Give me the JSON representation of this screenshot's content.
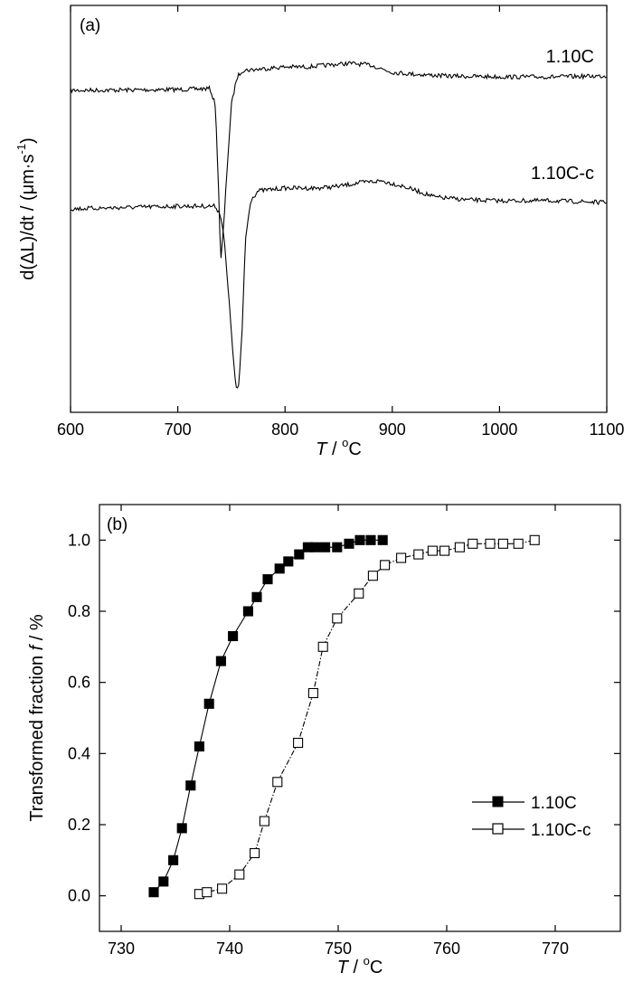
{
  "chart_data": [
    {
      "type": "line",
      "panel_label": "(a)",
      "xlabel": {
        "var": "T",
        "unit_pre": " / ",
        "unit_sup": "o",
        "unit_post": "C"
      },
      "ylabel": {
        "text": "d(ΔL)/dt / (μm·s",
        "sup": "-1",
        "post": ")"
      },
      "xlim": [
        600,
        1100
      ],
      "xticks": [
        600,
        700,
        800,
        900,
        1000,
        1100
      ],
      "yticks_shown": false,
      "y_units": "arbitrary (offset curves)",
      "noise_amplitude": 1.5,
      "series": [
        {
          "name": "1.10C",
          "baseline_y": 94,
          "points": [
            [
              600,
              94
            ],
            [
              700,
              93
            ],
            [
              730,
              92
            ],
            [
              735,
              110
            ],
            [
              738,
              200
            ],
            [
              740,
              285
            ],
            [
              743,
              240
            ],
            [
              746,
              180
            ],
            [
              750,
              110
            ],
            [
              755,
              80
            ],
            [
              760,
              72
            ],
            [
              780,
              70
            ],
            [
              800,
              68
            ],
            [
              820,
              68
            ],
            [
              840,
              66
            ],
            [
              860,
              64
            ],
            [
              880,
              66
            ],
            [
              900,
              74
            ],
            [
              920,
              76
            ],
            [
              950,
              78
            ],
            [
              1000,
              79
            ],
            [
              1050,
              79
            ],
            [
              1100,
              78
            ]
          ]
        },
        {
          "name": "1.10C-c",
          "baseline_y": 225,
          "points": [
            [
              600,
              225
            ],
            [
              700,
              222
            ],
            [
              735,
              222
            ],
            [
              740,
              232
            ],
            [
              743,
              255
            ],
            [
              746,
              300
            ],
            [
              750,
              360
            ],
            [
              753,
              410
            ],
            [
              755,
              425
            ],
            [
              757,
              420
            ],
            [
              760,
              360
            ],
            [
              763,
              260
            ],
            [
              768,
              215
            ],
            [
              775,
              205
            ],
            [
              800,
              202
            ],
            [
              830,
              202
            ],
            [
              850,
              200
            ],
            [
              870,
              196
            ],
            [
              890,
              194
            ],
            [
              910,
              200
            ],
            [
              940,
              212
            ],
            [
              970,
              215
            ],
            [
              1000,
              216
            ],
            [
              1050,
              216
            ],
            [
              1100,
              218
            ]
          ]
        }
      ]
    },
    {
      "type": "line",
      "panel_label": "(b)",
      "xlabel": {
        "var": "T",
        "unit_pre": " / ",
        "unit_sup": "o",
        "unit_post": "C"
      },
      "ylabel": {
        "text": "Transformed fraction ",
        "var": "f",
        "post": " / %"
      },
      "xlim": [
        728,
        776
      ],
      "ylim": [
        -0.1,
        1.1
      ],
      "xticks": [
        730,
        740,
        750,
        760,
        770
      ],
      "yticks": [
        0.0,
        0.2,
        0.4,
        0.6,
        0.8,
        1.0
      ],
      "ytick_labels": [
        "0.0",
        "0.2",
        "0.4",
        "0.6",
        "0.8",
        "1.0"
      ],
      "legend_position": "lower-right",
      "series": [
        {
          "name": "1.10C",
          "marker": "filled-square",
          "line": "solid",
          "x": [
            733.0,
            733.9,
            734.8,
            735.6,
            736.4,
            737.2,
            738.1,
            739.2,
            740.3,
            741.7,
            742.5,
            743.5,
            744.6,
            745.4,
            746.4,
            747.2,
            747.9,
            748.8,
            749.9,
            751.0,
            752.0,
            753.0,
            754.1
          ],
          "y": [
            0.01,
            0.04,
            0.1,
            0.19,
            0.31,
            0.42,
            0.54,
            0.66,
            0.73,
            0.8,
            0.84,
            0.89,
            0.92,
            0.94,
            0.96,
            0.98,
            0.98,
            0.98,
            0.98,
            0.99,
            1.0,
            1.0,
            1.0
          ]
        },
        {
          "name": "1.10C-c",
          "marker": "open-square",
          "line": "dashdot",
          "x": [
            737.2,
            737.9,
            739.3,
            740.9,
            742.3,
            743.2,
            744.4,
            746.3,
            747.7,
            748.6,
            749.9,
            751.9,
            753.2,
            754.3,
            755.8,
            757.4,
            758.7,
            759.8,
            761.2,
            762.4,
            764.0,
            765.2,
            766.6,
            768.1
          ],
          "y": [
            0.005,
            0.01,
            0.02,
            0.06,
            0.12,
            0.21,
            0.32,
            0.43,
            0.57,
            0.7,
            0.78,
            0.85,
            0.9,
            0.93,
            0.95,
            0.96,
            0.97,
            0.97,
            0.98,
            0.99,
            0.99,
            0.99,
            0.99,
            1.0
          ]
        }
      ]
    }
  ]
}
